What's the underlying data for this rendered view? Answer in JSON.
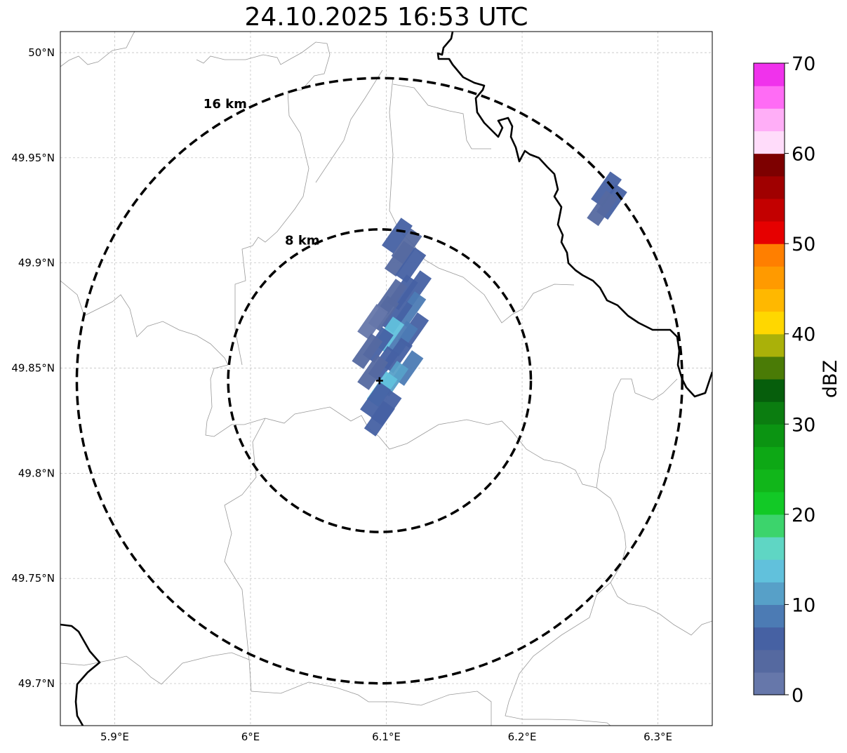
{
  "title": "24.10.2025 16:53 UTC",
  "map": {
    "lon_range": [
      5.86,
      6.34
    ],
    "lat_range": [
      49.68,
      50.01
    ],
    "lon_ticks": [
      {
        "value": 5.9,
        "label": "5.9°E"
      },
      {
        "value": 6.0,
        "label": "6°E"
      },
      {
        "value": 6.1,
        "label": "6.1°E"
      },
      {
        "value": 6.2,
        "label": "6.2°E"
      },
      {
        "value": 6.3,
        "label": "6.3°E"
      }
    ],
    "lat_ticks": [
      {
        "value": 50.0,
        "label": "50°N"
      },
      {
        "value": 49.95,
        "label": "49.95°N"
      },
      {
        "value": 49.9,
        "label": "49.9°N"
      },
      {
        "value": 49.85,
        "label": "49.85°N"
      },
      {
        "value": 49.8,
        "label": "49.8°N"
      },
      {
        "value": 49.75,
        "label": "49.75°N"
      },
      {
        "value": 49.7,
        "label": "49.7°N"
      }
    ],
    "radar_site": {
      "lon": 6.095,
      "lat": 49.844
    },
    "range_rings": [
      {
        "radius_km": 8,
        "label": "8 km"
      },
      {
        "radius_km": 16,
        "label": "16 km"
      }
    ],
    "echoes": [
      {
        "lon": 6.115,
        "lat": 49.908,
        "dbz": 3
      },
      {
        "lon": 6.108,
        "lat": 49.913,
        "dbz": 5
      },
      {
        "lon": 6.11,
        "lat": 49.902,
        "dbz": 4
      },
      {
        "lon": 6.118,
        "lat": 49.899,
        "dbz": 6
      },
      {
        "lon": 6.122,
        "lat": 49.888,
        "dbz": 7
      },
      {
        "lon": 6.112,
        "lat": 49.886,
        "dbz": 5
      },
      {
        "lon": 6.104,
        "lat": 49.884,
        "dbz": 3
      },
      {
        "lon": 6.118,
        "lat": 49.878,
        "dbz": 8
      },
      {
        "lon": 6.108,
        "lat": 49.875,
        "dbz": 6
      },
      {
        "lon": 6.098,
        "lat": 49.876,
        "dbz": 4
      },
      {
        "lon": 6.09,
        "lat": 49.872,
        "dbz": 2
      },
      {
        "lon": 6.12,
        "lat": 49.868,
        "dbz": 6
      },
      {
        "lon": 6.112,
        "lat": 49.864,
        "dbz": 9
      },
      {
        "lon": 6.102,
        "lat": 49.866,
        "dbz": 13
      },
      {
        "lon": 6.094,
        "lat": 49.861,
        "dbz": 5
      },
      {
        "lon": 6.086,
        "lat": 49.858,
        "dbz": 3
      },
      {
        "lon": 6.108,
        "lat": 49.856,
        "dbz": 7
      },
      {
        "lon": 6.098,
        "lat": 49.852,
        "dbz": 6
      },
      {
        "lon": 6.116,
        "lat": 49.85,
        "dbz": 8
      },
      {
        "lon": 6.09,
        "lat": 49.848,
        "dbz": 4
      },
      {
        "lon": 6.105,
        "lat": 49.845,
        "dbz": 11
      },
      {
        "lon": 6.097,
        "lat": 49.84,
        "dbz": 14
      },
      {
        "lon": 6.092,
        "lat": 49.835,
        "dbz": 6
      },
      {
        "lon": 6.1,
        "lat": 49.831,
        "dbz": 7
      },
      {
        "lon": 6.095,
        "lat": 49.826,
        "dbz": 5
      },
      {
        "lon": 6.262,
        "lat": 49.935,
        "dbz": 5
      },
      {
        "lon": 6.266,
        "lat": 49.929,
        "dbz": 6
      },
      {
        "lon": 6.259,
        "lat": 49.926,
        "dbz": 4
      }
    ]
  },
  "colorbar": {
    "label": "dBZ",
    "min": 0,
    "max": 70,
    "step": 2.5,
    "ticks": [
      0,
      10,
      20,
      30,
      40,
      50,
      60,
      70
    ],
    "tick_labels": [
      "0",
      "10",
      "20",
      "30",
      "40",
      "50",
      "60",
      "70"
    ],
    "colors": [
      "#6677aa",
      "#5569a0",
      "#4661a3",
      "#4c7bb4",
      "#57a0c8",
      "#61c1dc",
      "#5fd6c4",
      "#3cd46c",
      "#12c926",
      "#11b61a",
      "#0da815",
      "#0b9412",
      "#0b7d10",
      "#065e0c",
      "#4a7b06",
      "#aab109",
      "#ffd700",
      "#ffb800",
      "#ff9a00",
      "#ff7f00",
      "#e60000",
      "#c30000",
      "#a00000",
      "#7d0000",
      "#ffdcfa",
      "#ffaef7",
      "#ff6cf5",
      "#f032ec"
    ]
  }
}
